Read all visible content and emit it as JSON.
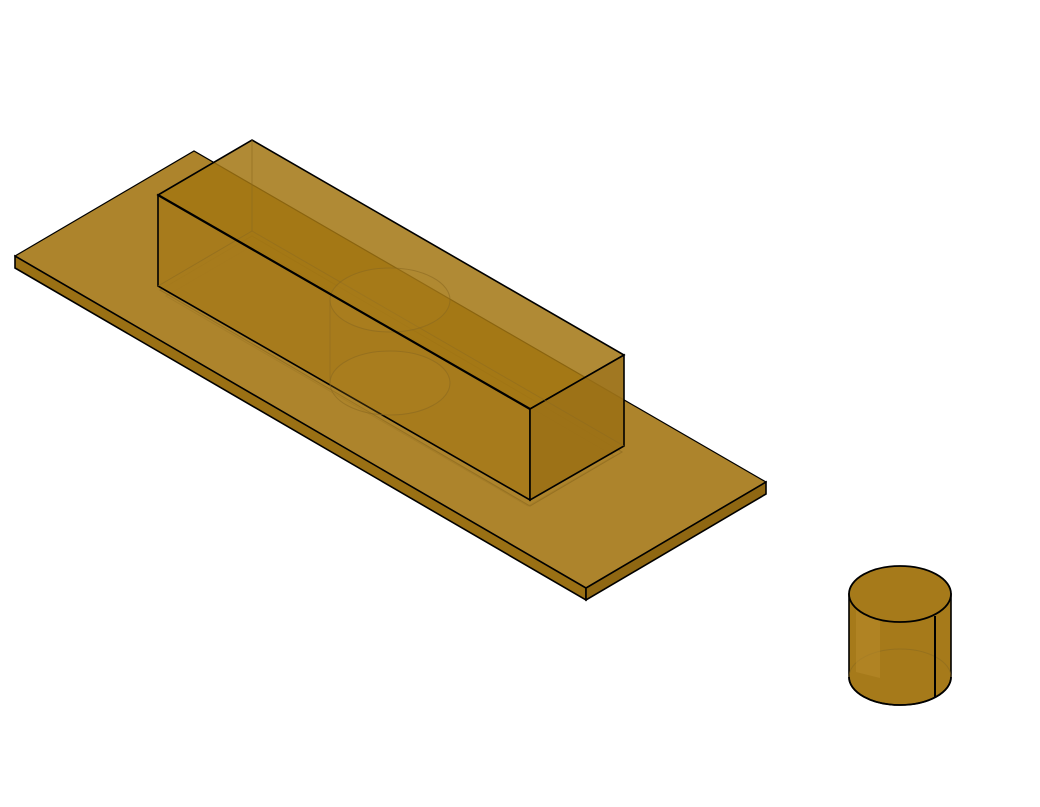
{
  "scene": {
    "background": "#ffffff",
    "colors": {
      "fill": "#a67a1a",
      "fill_light": "#b4862a",
      "fill_dark": "#8f6712",
      "edge": "#000000",
      "hidden_edge": "#8c6a20"
    },
    "objects": [
      {
        "kind": "plate"
      },
      {
        "kind": "block"
      },
      {
        "kind": "cylinder"
      }
    ]
  }
}
